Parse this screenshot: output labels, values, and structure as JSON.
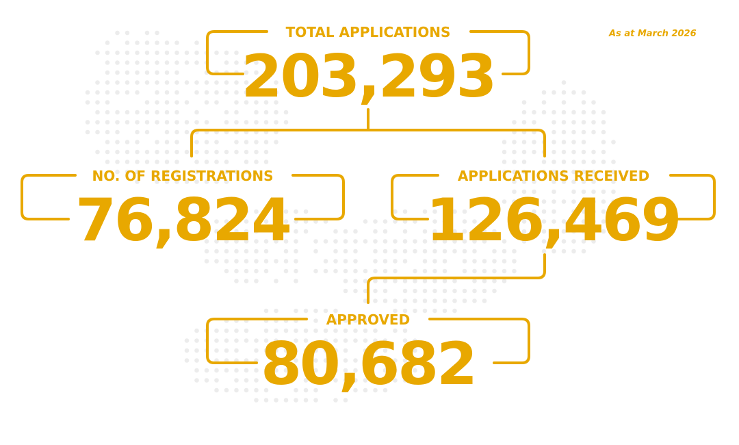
{
  "as_at": "As at March 2026",
  "accent_color": "#E8A800",
  "total": {
    "label": "TOTAL APPLICATIONS",
    "value": "203,293"
  },
  "registrations": {
    "label": "NO. OF REGISTRATIONS",
    "value": "76,824"
  },
  "received": {
    "label": "APPLICATIONS RECEIVED",
    "value": "126,469"
  },
  "approved": {
    "label": "APPROVED",
    "value": "80,682"
  }
}
